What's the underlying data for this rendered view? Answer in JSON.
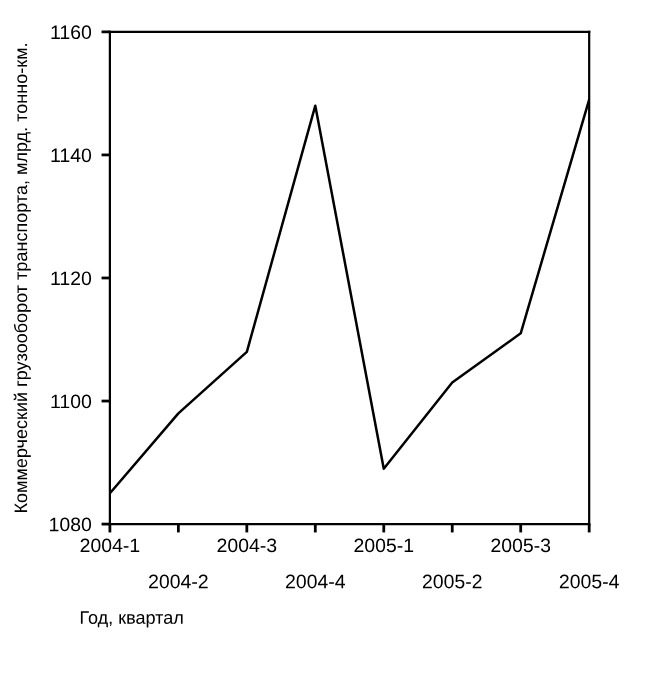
{
  "chart_data": {
    "type": "line",
    "xlabel": "Год, квартал",
    "ylabel": "Коммерческий грузооборот транспорта, млрд. тонно-км.",
    "categories": [
      "2004-1",
      "2004-2",
      "2004-3",
      "2004-4",
      "2005-1",
      "2005-2",
      "2005-3",
      "2005-4"
    ],
    "series": [
      {
        "color": "#000000",
        "values": [
          1085,
          1098,
          1108,
          1148,
          1089,
          1103,
          1111,
          1149
        ]
      }
    ],
    "ylim": [
      1080,
      1160
    ],
    "yticks": [
      1080,
      1100,
      1120,
      1140,
      1160
    ],
    "grid": false,
    "legend": false,
    "marker": "none",
    "line_style": "solid"
  }
}
